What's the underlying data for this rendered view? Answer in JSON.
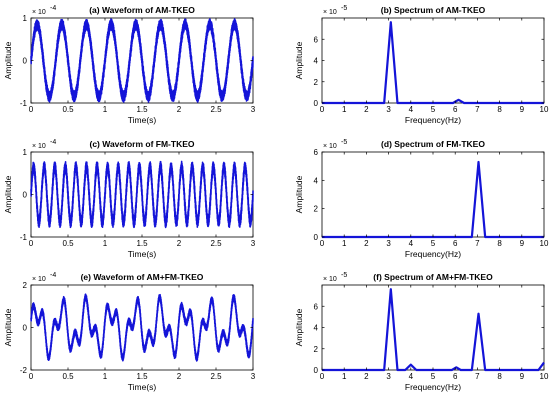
{
  "chart_data": [
    {
      "type": "line",
      "title": "(a) Waveform of AM-TKEO",
      "xlabel": "Time(s)",
      "ylabel": "Amplitude",
      "multiplier": "× 10",
      "exponent": "-4",
      "xlim": [
        0,
        3
      ],
      "ylim": [
        -1,
        1
      ],
      "xticks": [
        "0",
        "0.5",
        "1",
        "1.5",
        "2",
        "2.5",
        "3"
      ],
      "yticks": [
        "-1",
        "0",
        "1"
      ],
      "signal": {
        "kind": "sine",
        "frequency_hz": 3,
        "amplitude": 0.85,
        "band": 0.13
      }
    },
    {
      "type": "line",
      "title": "(b) Spectrum of AM-TKEO",
      "xlabel": "Frequency(Hz)",
      "ylabel": "Amplitude",
      "multiplier": "× 10",
      "exponent": "-5",
      "xlim": [
        0,
        10
      ],
      "ylim": [
        0,
        8
      ],
      "xticks": [
        "0",
        "1",
        "2",
        "3",
        "4",
        "5",
        "6",
        "7",
        "8",
        "9",
        "10"
      ],
      "yticks": [
        "0",
        "2",
        "4",
        "6"
      ],
      "x": [
        0,
        2.8,
        3.1,
        3.4,
        5.9,
        6.15,
        6.4,
        10
      ],
      "y": [
        0,
        0,
        7.6,
        0,
        0,
        0.3,
        0,
        0
      ]
    },
    {
      "type": "line",
      "title": "(c) Waveform of FM-TKEO",
      "xlabel": "Time(s)",
      "ylabel": "Amplitude",
      "multiplier": "× 10",
      "exponent": "-4",
      "xlim": [
        0,
        3
      ],
      "ylim": [
        -1,
        1
      ],
      "xticks": [
        "0",
        "0.5",
        "1",
        "1.5",
        "2",
        "2.5",
        "3"
      ],
      "yticks": [
        "-1",
        "0",
        "1"
      ],
      "signal": {
        "kind": "sine",
        "frequency_hz": 7,
        "amplitude": 0.65,
        "band": 0.13
      }
    },
    {
      "type": "line",
      "title": "(d) Spectrum of FM-TKEO",
      "xlabel": "Frequency(Hz)",
      "ylabel": "Amplitude",
      "multiplier": "× 10",
      "exponent": "-5",
      "xlim": [
        0,
        10
      ],
      "ylim": [
        0,
        6
      ],
      "xticks": [
        "0",
        "1",
        "2",
        "3",
        "4",
        "5",
        "6",
        "7",
        "8",
        "9",
        "10"
      ],
      "yticks": [
        "0",
        "2",
        "4",
        "6"
      ],
      "x": [
        0,
        6.75,
        7.05,
        7.35,
        10
      ],
      "y": [
        0,
        0,
        5.3,
        0,
        0
      ]
    },
    {
      "type": "line",
      "title": "(e) Waveform of AM+FM-TKEO",
      "xlabel": "Time(s)",
      "ylabel": "Amplitude",
      "multiplier": "× 10",
      "exponent": "-4",
      "xlim": [
        0,
        3
      ],
      "ylim": [
        -2,
        2
      ],
      "xticks": [
        "0",
        "0.5",
        "1",
        "1.5",
        "2",
        "2.5",
        "3"
      ],
      "yticks": [
        "-2",
        "0",
        "2"
      ],
      "signal": {
        "kind": "two_sine",
        "frequency_hz": [
          3,
          7
        ],
        "amplitude": [
          0.85,
          0.6
        ],
        "band": 0.15
      }
    },
    {
      "type": "line",
      "title": "(f) Spectrum of AM+FM-TKEO",
      "xlabel": "Frequency(Hz)",
      "ylabel": "Amplitude",
      "multiplier": "× 10",
      "exponent": "-5",
      "xlim": [
        0,
        10
      ],
      "ylim": [
        0,
        8
      ],
      "xticks": [
        "0",
        "1",
        "2",
        "3",
        "4",
        "5",
        "6",
        "7",
        "8",
        "9",
        "10"
      ],
      "yticks": [
        "0",
        "2",
        "4",
        "6"
      ],
      "x": [
        0,
        2.8,
        3.1,
        3.4,
        3.75,
        4.0,
        4.25,
        5.85,
        6.05,
        6.25,
        6.75,
        7.05,
        7.35,
        9.75,
        10
      ],
      "y": [
        0,
        0,
        7.6,
        0,
        0,
        0.5,
        0,
        0,
        0.25,
        0,
        0,
        5.3,
        0,
        0,
        0.7
      ]
    }
  ]
}
